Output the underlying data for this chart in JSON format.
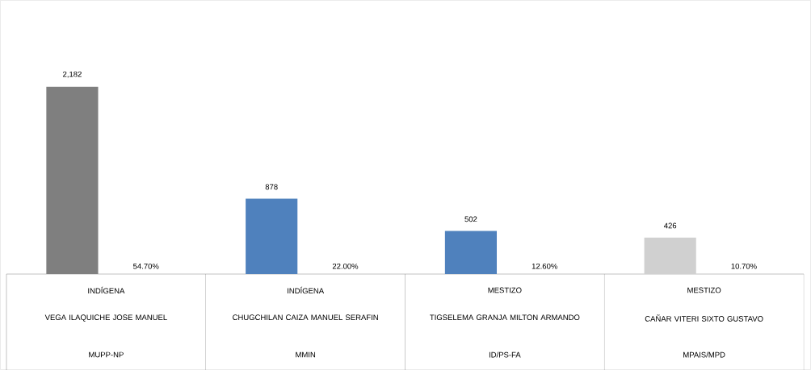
{
  "chart_data": {
    "type": "bar",
    "categories": [
      "VEGA ILAQUICHE JOSE MANUEL",
      "CHUGCHILAN CAIZA MANUEL SERAFIN",
      "TIGSELEMA GRANJA MILTON ARMANDO",
      "CAÑAR VITERI SIXTO GUSTAVO"
    ],
    "values": [
      2182,
      878,
      502,
      426
    ],
    "colors": [
      "#7f7f7f",
      "#4f81bd",
      "#4f81bd",
      "#d0d0d0"
    ],
    "value_labels": [
      "2,182",
      "878",
      "502",
      "426"
    ],
    "annotations": [
      "54.70%",
      "22.00%",
      "12.60%",
      "10.70%",
      "INDÍGENA",
      "INDÍGENA",
      "MESTIZO",
      "MESTIZO",
      "MUPP-NP",
      "MMIN",
      "ID/PS-FA",
      "MPAIS/MPD"
    ]
  }
}
